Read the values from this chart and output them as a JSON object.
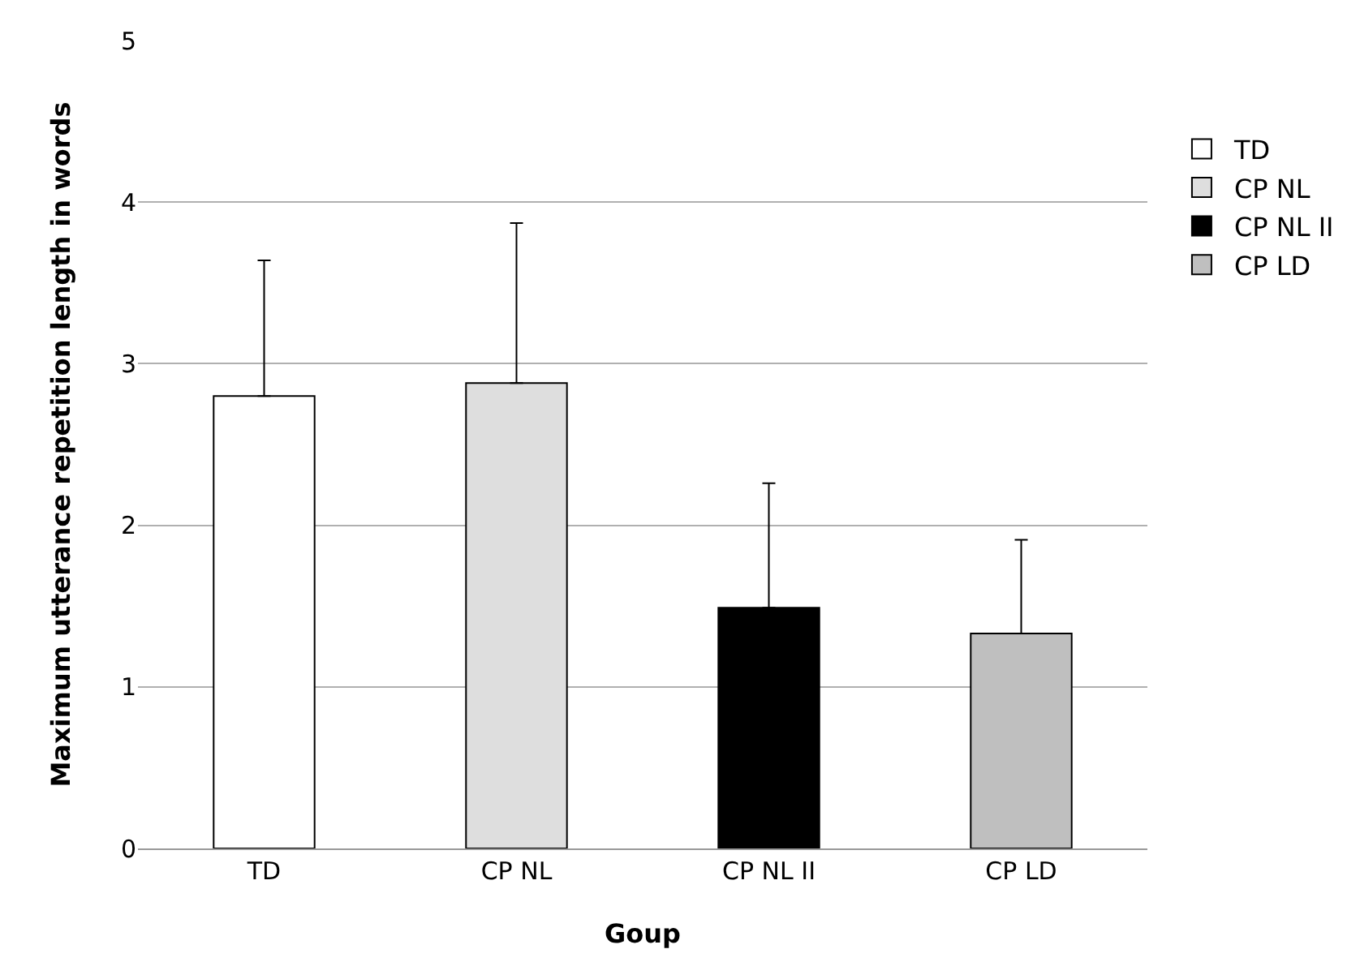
{
  "chart_data": {
    "type": "bar",
    "xlabel": "Goup",
    "ylabel": "Maximum utterance repetition length in words",
    "categories": [
      "TD",
      "CP NL",
      "CP NL II",
      "CP LD"
    ],
    "series": [
      {
        "name": "TD",
        "color": "#ffffff",
        "values": [
          2.8,
          null,
          null,
          null
        ],
        "errors": [
          [
            2.8,
            3.64
          ],
          null,
          null,
          null
        ]
      },
      {
        "name": "CP NL",
        "color": "#dedede",
        "values": [
          null,
          2.88,
          null,
          null
        ],
        "errors": [
          null,
          [
            2.88,
            3.87
          ],
          null,
          null
        ]
      },
      {
        "name": "CP NL II",
        "color": "#000000",
        "values": [
          null,
          null,
          1.49,
          null
        ],
        "errors": [
          null,
          null,
          [
            1.49,
            2.26
          ],
          null
        ]
      },
      {
        "name": "CP LD",
        "color": "#bfbfbf",
        "values": [
          null,
          null,
          null,
          1.33
        ],
        "errors": [
          null,
          null,
          null,
          [
            1.33,
            1.91
          ]
        ]
      }
    ],
    "ylim": [
      0,
      5
    ],
    "yticks": [
      0,
      1,
      2,
      3,
      4,
      5
    ],
    "grid": "y",
    "legend": "right"
  }
}
